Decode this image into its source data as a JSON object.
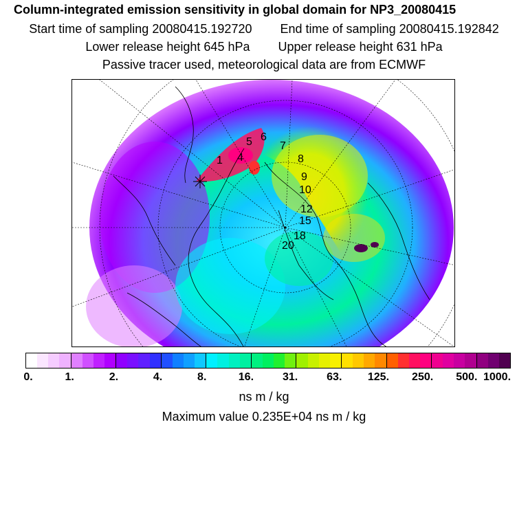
{
  "header": {
    "title": "Column-integrated emission sensitivity in global domain for NP3_20080415",
    "start_time": "Start time of sampling 20080415.192720",
    "end_time": "End time of sampling 20080415.192842",
    "lower_release": "Lower release height  645 hPa",
    "upper_release": "Upper release height  631 hPa",
    "tracer_note": "Passive tracer used, meteorological data are from ECMWF"
  },
  "map": {
    "projection": "polar-stereographic",
    "trajectory_markers": [
      {
        "label": "1"
      },
      {
        "label": "4"
      },
      {
        "label": "5"
      },
      {
        "label": "6"
      },
      {
        "label": "7"
      },
      {
        "label": "8"
      },
      {
        "label": "9"
      },
      {
        "label": "10"
      },
      {
        "label": "12"
      },
      {
        "label": "15"
      },
      {
        "label": "18"
      },
      {
        "label": "20"
      }
    ]
  },
  "legend": {
    "tick_labels": [
      "0.",
      "1.",
      "2.",
      "4.",
      "8.",
      "16.",
      "31.",
      "63.",
      "125.",
      "250.",
      "500.",
      "1000."
    ],
    "colors": [
      "#ffffff",
      "#fbe6ff",
      "#f5ccff",
      "#efb2ff",
      "#e080ff",
      "#d050ff",
      "#c020ff",
      "#b000ff",
      "#9000ff",
      "#7a10ff",
      "#6020ff",
      "#3030ff",
      "#2050ff",
      "#1080ff",
      "#10a0ff",
      "#10c8ff",
      "#00f0ff",
      "#00f0e0",
      "#00f0c0",
      "#00f0a0",
      "#00f080",
      "#00f060",
      "#20f030",
      "#70f010",
      "#a0f000",
      "#c8f000",
      "#e6f000",
      "#f8f000",
      "#ffe000",
      "#ffc800",
      "#ffa800",
      "#ff8800",
      "#ff6000",
      "#ff3030",
      "#ff1060",
      "#ff0080",
      "#f00090",
      "#e000a0",
      "#c800a0",
      "#b00090",
      "#900080",
      "#700070",
      "#500050"
    ],
    "units": "ns m / kg"
  },
  "summary": {
    "max_value": "Maximum value  0.235E+04 ns m / kg"
  }
}
